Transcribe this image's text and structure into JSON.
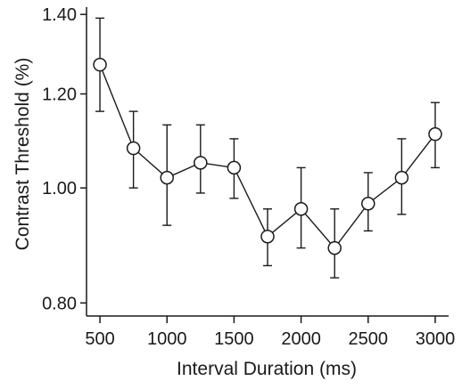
{
  "chart_data": {
    "type": "line",
    "title": "",
    "xlabel": "Interval Duration (ms)",
    "ylabel": "Contrast Threshold (%)",
    "y_scale": "log",
    "xlim": [
      400,
      3100
    ],
    "ylim": [
      0.78,
      1.42
    ],
    "x_ticks": [
      500,
      1000,
      1500,
      2000,
      2500,
      3000
    ],
    "x_tick_labels": [
      "500",
      "1000",
      "1500",
      "2000",
      "2500",
      "3000"
    ],
    "y_ticks": [
      0.8,
      1.0,
      1.2,
      1.4
    ],
    "y_tick_labels": [
      "0.80",
      "1.00",
      "1.20",
      "1.40"
    ],
    "grid": false,
    "marker": "open-circle",
    "series": [
      {
        "x": [
          500,
          750,
          1000,
          1250,
          1500,
          1750,
          2000,
          2250,
          2500,
          2750,
          3000
        ],
        "y": [
          1.27,
          1.08,
          1.02,
          1.05,
          1.04,
          0.91,
          0.96,
          0.89,
          0.97,
          1.02,
          1.11
        ],
        "err_low": [
          1.16,
          1.0,
          0.93,
          0.99,
          0.98,
          0.86,
          0.89,
          0.84,
          0.92,
          0.95,
          1.04
        ],
        "err_high": [
          1.39,
          1.16,
          1.13,
          1.13,
          1.1,
          0.96,
          1.04,
          0.96,
          1.03,
          1.1,
          1.18
        ]
      }
    ]
  }
}
